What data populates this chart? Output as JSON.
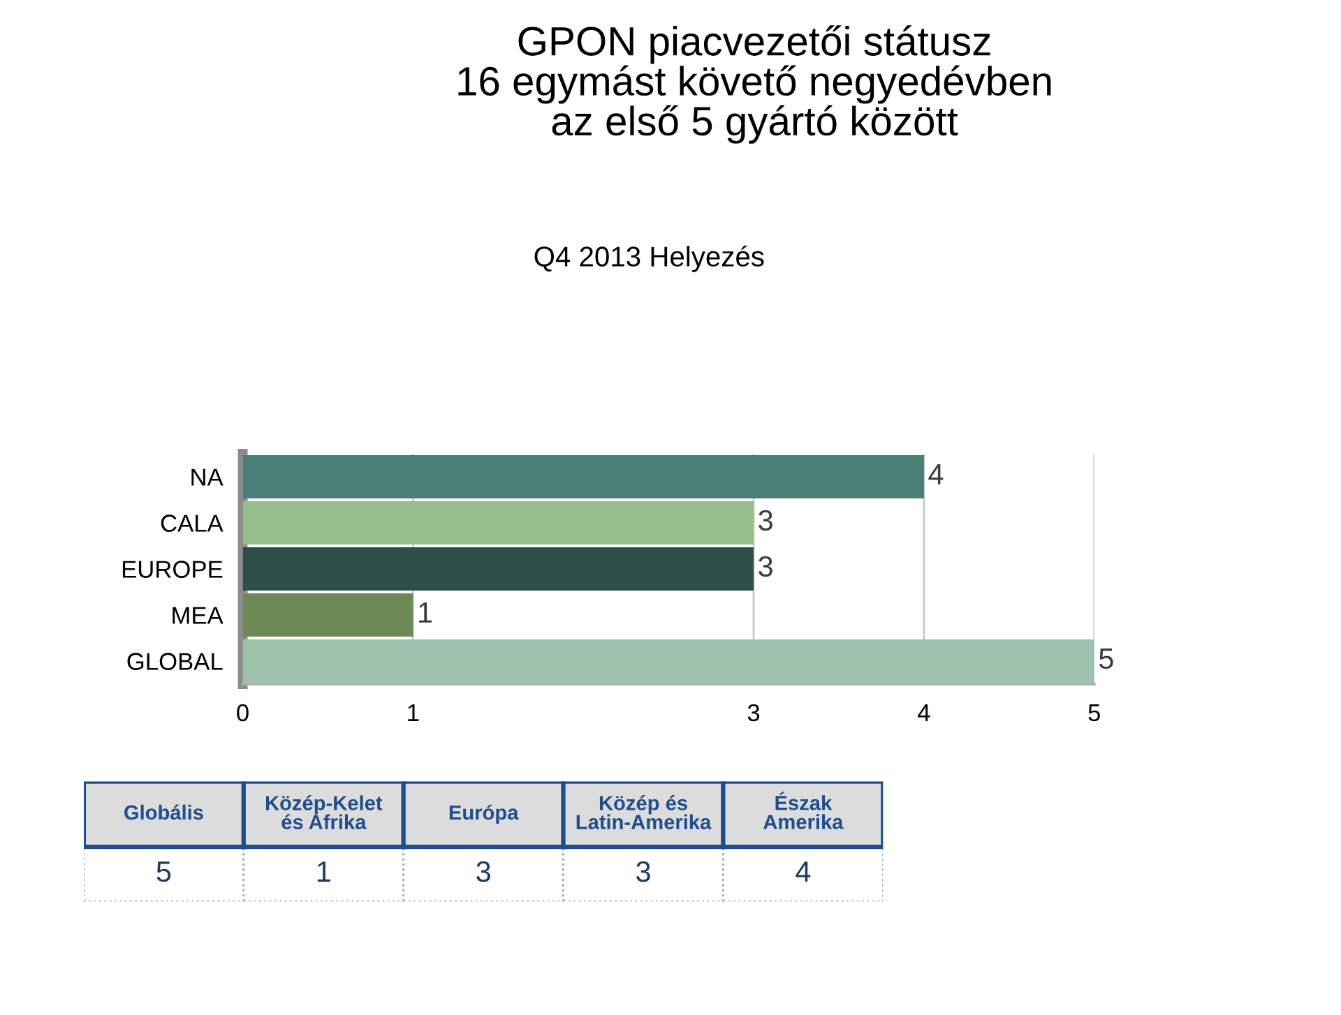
{
  "chart_data": [
    {
      "type": "bar",
      "orientation": "horizontal",
      "title": "GPON piacvezetői státusz\n16 egymást követő negyedévben\naz első 5 gyártó között",
      "subtitle": "Q4 2013 Helyezés",
      "categories": [
        "NA",
        "CALA",
        "EUROPE",
        "MEA",
        "GLOBAL"
      ],
      "values": [
        4,
        3,
        3,
        1,
        5
      ],
      "colors": [
        "#4a7f77",
        "#97be8a",
        "#2e4e4a",
        "#6b8a56",
        "#9cc2ab"
      ],
      "xlim": [
        0,
        5
      ],
      "xticks": [
        0,
        1,
        3,
        4,
        5
      ],
      "grid": "x",
      "data_labels": true
    },
    {
      "type": "other",
      "categories": [
        "Globális",
        "Közép-Kelet\nés Afrika",
        "Európa",
        "Közép és\nLatin-Amerika",
        "Észak\nAmerika"
      ],
      "values": [
        5,
        1,
        3,
        3,
        4
      ],
      "data_labels": true
    }
  ]
}
